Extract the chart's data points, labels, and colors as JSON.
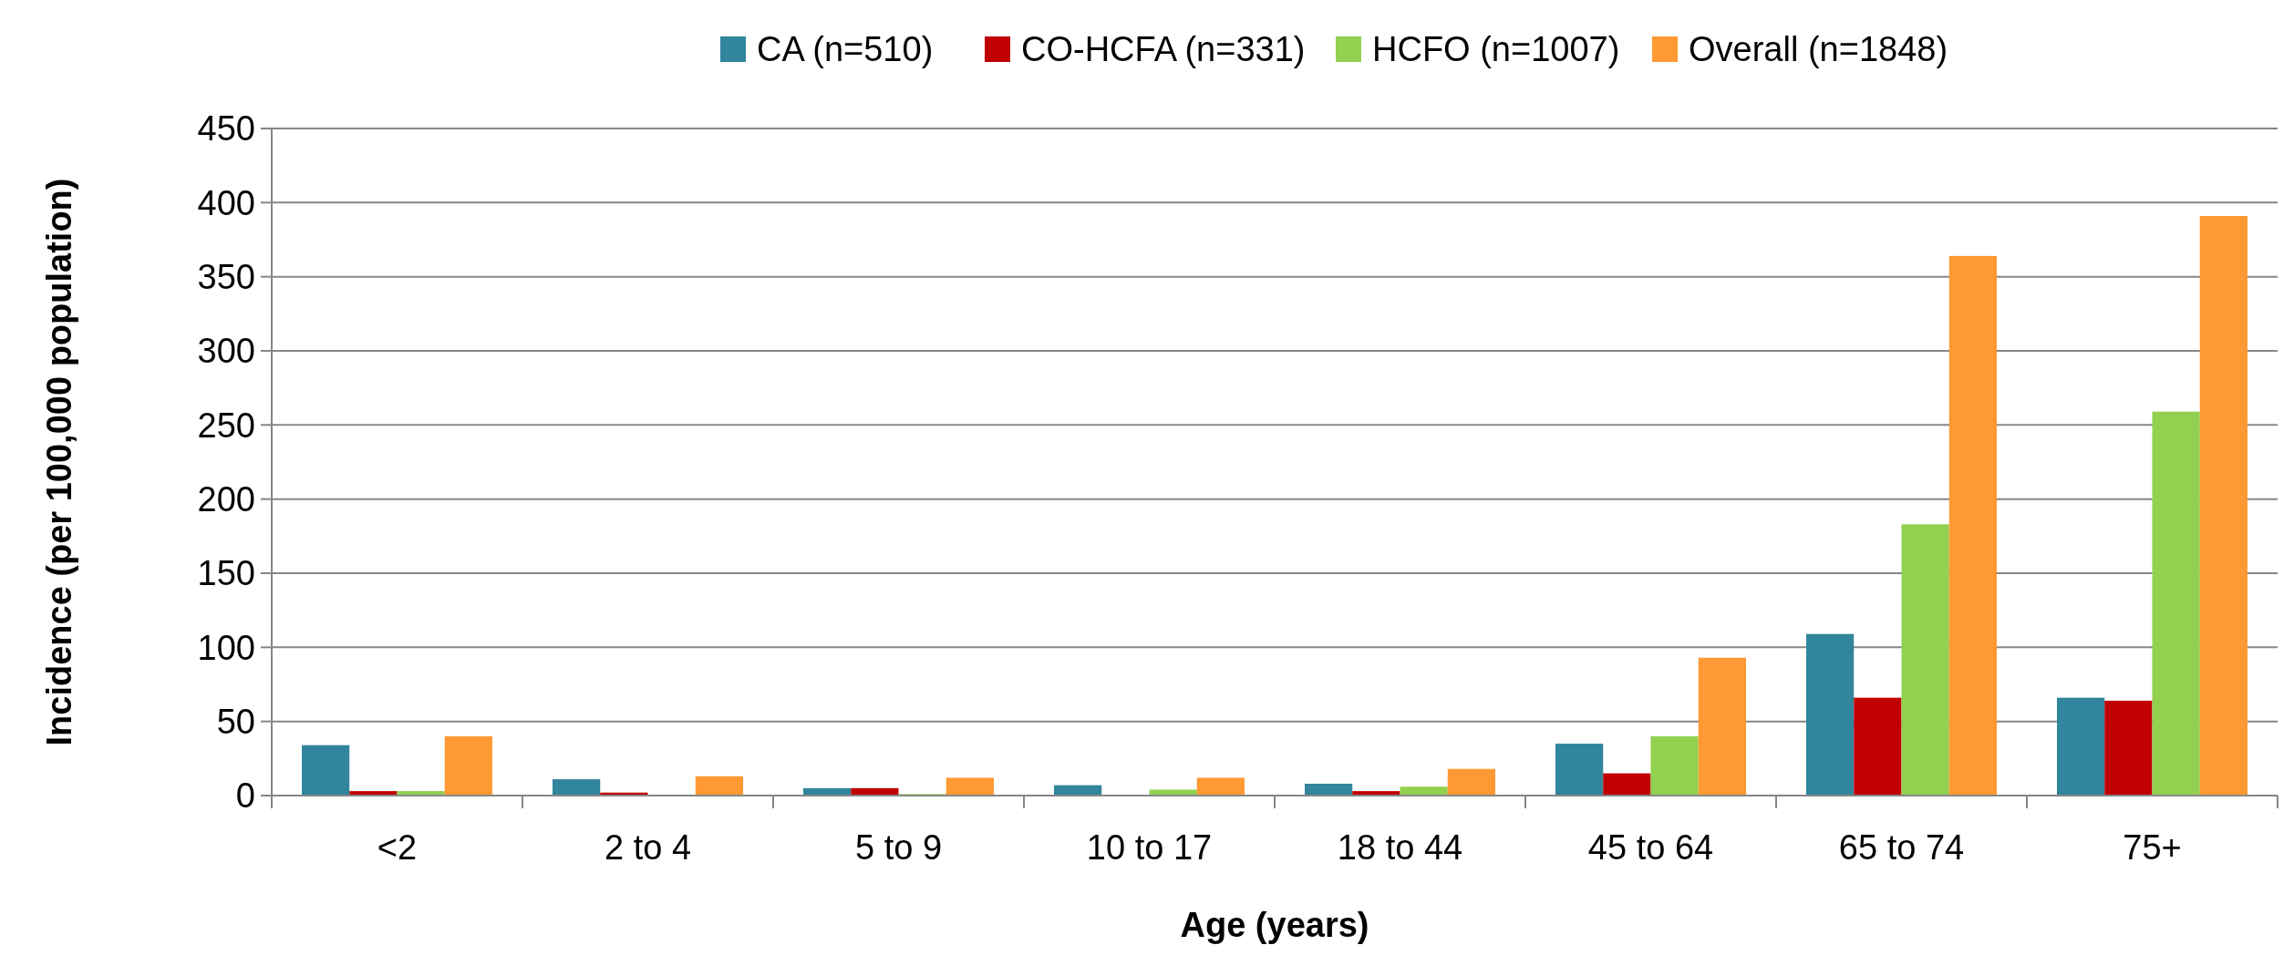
{
  "chart_data": {
    "type": "bar",
    "xlabel": "Age (years)",
    "ylabel": "Incidence (per 100,000 population)",
    "categories": [
      "<2",
      "2 to 4",
      "5 to 9",
      "10 to 17",
      "18 to 44",
      "45 to 64",
      "65 to 74",
      "75+"
    ],
    "series": [
      {
        "name": "CA (n=510)",
        "color": "#31859c",
        "values": [
          34,
          11,
          5,
          7,
          8,
          35,
          109,
          66
        ]
      },
      {
        "name": "CO-HCFA (n=331)",
        "color": "#c00000",
        "values": [
          3,
          2,
          5,
          0,
          3,
          15,
          66,
          64
        ]
      },
      {
        "name": "HCFO (n=1007)",
        "color": "#92d050",
        "values": [
          3,
          0,
          1,
          4,
          6,
          40,
          183,
          259
        ]
      },
      {
        "name": "Overall (n=1848)",
        "color": "#ff9933",
        "values": [
          40,
          13,
          12,
          12,
          18,
          93,
          364,
          391
        ]
      }
    ],
    "ylim": [
      0,
      450
    ],
    "yticks": [
      0,
      50,
      100,
      150,
      200,
      250,
      300,
      350,
      400,
      450
    ],
    "grid": "y",
    "legend": "top"
  }
}
